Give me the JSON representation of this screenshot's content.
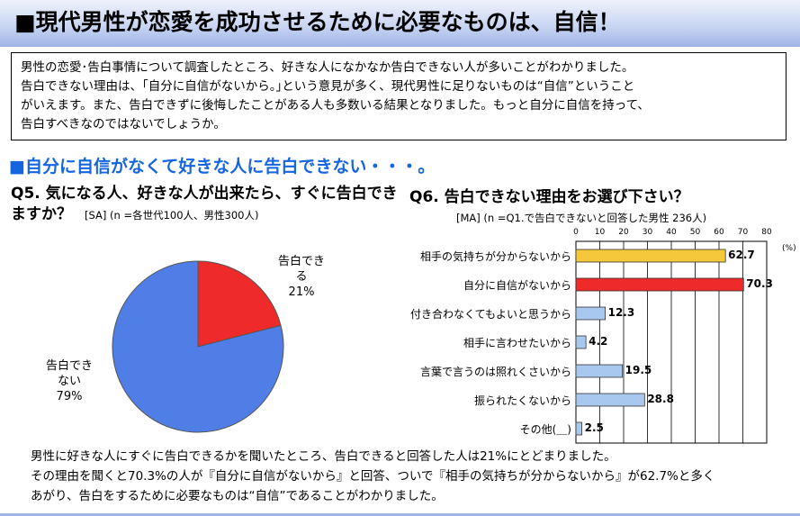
{
  "banner": {
    "title": "■現代男性が恋愛を成功させるために必要なものは、自信！",
    "gradient": [
      "#eef2fb",
      "#c9d6f2",
      "#9fb3e6"
    ]
  },
  "intro": {
    "lines": [
      "男性の恋愛･告白事情について調査したところ、好きな人になかなか告白できない人が多いことがわかりました。",
      "告白できない理由は、｢自分に自信がないから。｣という意見が多く、現代男性に足りないものは“自信”ということ",
      "がいえます。また、告白できずに後悔したことがある人も多数いる結果となりました。もっと自分に自信を持って、",
      "告白すべきなのではないでしょうか。"
    ]
  },
  "section_heading": "■自分に自信がなくて好きな人に告白できない・・・。",
  "q5": {
    "title": "Q5. 気になる人、好きな人が出来たら、すぐに告白できますか？",
    "sample": "[SA] (n =各世代100人、男性300人)"
  },
  "q6": {
    "title": "Q6. 告白できない理由をお選び下さい？",
    "sample": "[MA] (n =Q1.で告白できないと回答した男性 236人)"
  },
  "summary": {
    "lines": [
      "男性に好きな人にすぐに告白できるかを聞いたところ、告白できると回答した人は21%にとどまりました。",
      "その理由を聞くと70.3%の人が『自分に自信がないから』と回答、ついで『相手の気持ちが分からないから』が62.7%と多く",
      "あがり、告白をするために必要なものは“自信”であることがわかりました。"
    ]
  },
  "colors": {
    "accent_blue": "#1565e0",
    "pie_red": "#ee2a2a",
    "pie_blue": "#4f7fe6",
    "bar_yellow": "#f5c73a",
    "bar_red": "#ee2a2a",
    "bar_lightblue": "#a9c8f0"
  },
  "chart_data": [
    {
      "type": "pie",
      "title": "",
      "slices": [
        {
          "label": "告白できる",
          "display_lines": [
            "告白でき",
            "る",
            "21%"
          ],
          "value": 21,
          "color": "#ee2a2a"
        },
        {
          "label": "告白できない",
          "display_lines": [
            "告白でき",
            "ない",
            "79%"
          ],
          "value": 79,
          "color": "#4f7fe6"
        }
      ]
    },
    {
      "type": "bar",
      "orientation": "horizontal",
      "title": "",
      "unit": "(%)",
      "xlim": [
        0,
        80
      ],
      "xticks": [
        0,
        10,
        20,
        30,
        40,
        50,
        60,
        70,
        80
      ],
      "grid": true,
      "categories": [
        "相手の気持ちが分からないから",
        "自分に自信がないから",
        "付き合わなくてもよいと思うから",
        "相手に言わせたいから",
        "言葉で言うのは照れくさいから",
        "振られたくないから",
        "その他(＿)"
      ],
      "values": [
        62.7,
        70.3,
        12.3,
        4.2,
        19.5,
        28.8,
        2.5
      ],
      "value_labels": [
        "62.7",
        "70.3",
        "12.3",
        "4.2",
        "19.5",
        "28.8",
        "2.5"
      ],
      "colors": [
        "#f5c73a",
        "#ee2a2a",
        "#a9c8f0",
        "#a9c8f0",
        "#a9c8f0",
        "#a9c8f0",
        "#a9c8f0"
      ]
    }
  ]
}
